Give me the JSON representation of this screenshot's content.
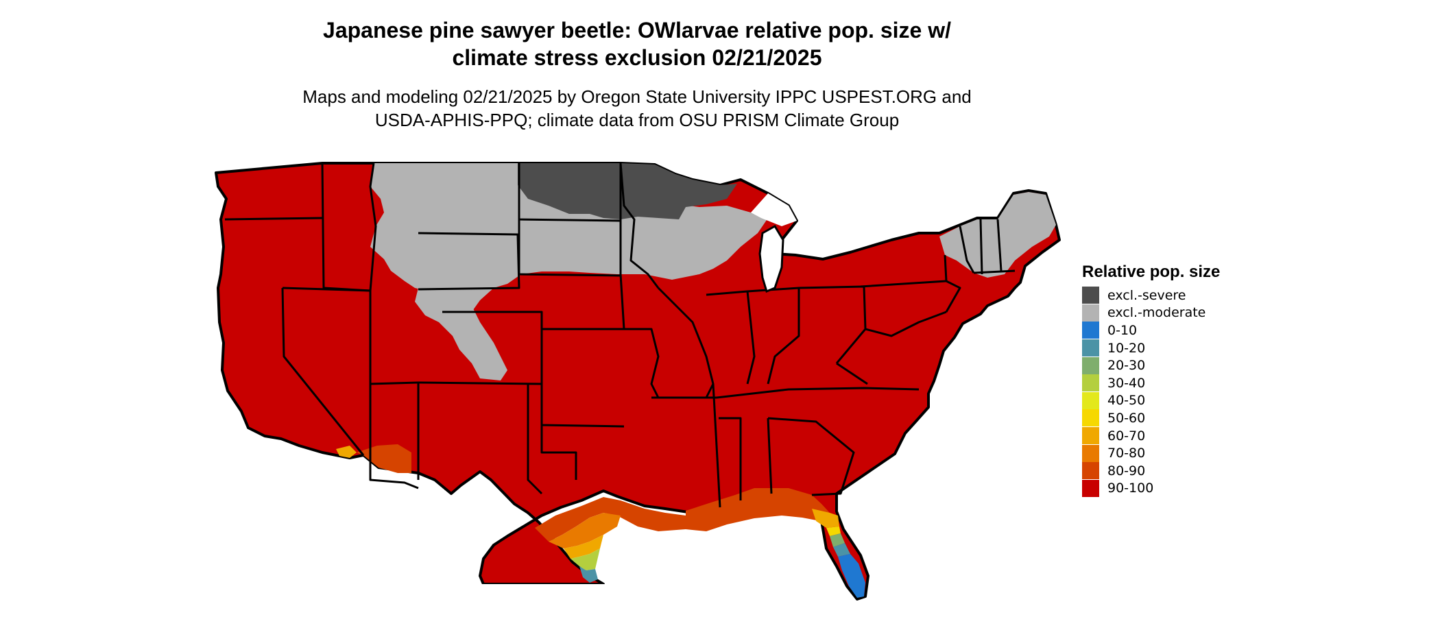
{
  "title_line1": "Japanese pine sawyer beetle: OWlarvae relative pop. size w/",
  "title_line2": "climate stress exclusion 02/21/2025",
  "subtitle_line1": "Maps and modeling 02/21/2025 by Oregon State University IPPC USPEST.ORG and",
  "subtitle_line2": "USDA-APHIS-PPQ; climate data from OSU PRISM Climate Group",
  "legend": {
    "title": "Relative pop. size",
    "items": [
      {
        "label": "excl.-severe",
        "color": "#4d4d4d"
      },
      {
        "label": "excl.-moderate",
        "color": "#b3b3b3"
      },
      {
        "label": "0-10",
        "color": "#1f78d1"
      },
      {
        "label": "10-20",
        "color": "#4b93a6"
      },
      {
        "label": "20-30",
        "color": "#7fae6d"
      },
      {
        "label": "30-40",
        "color": "#b4cf3e"
      },
      {
        "label": "40-50",
        "color": "#e3e81c"
      },
      {
        "label": "50-60",
        "color": "#f6d800"
      },
      {
        "label": "60-70",
        "color": "#f0a800"
      },
      {
        "label": "70-80",
        "color": "#e97a00"
      },
      {
        "label": "80-90",
        "color": "#d64400"
      },
      {
        "label": "90-100",
        "color": "#c80000"
      }
    ]
  }
}
